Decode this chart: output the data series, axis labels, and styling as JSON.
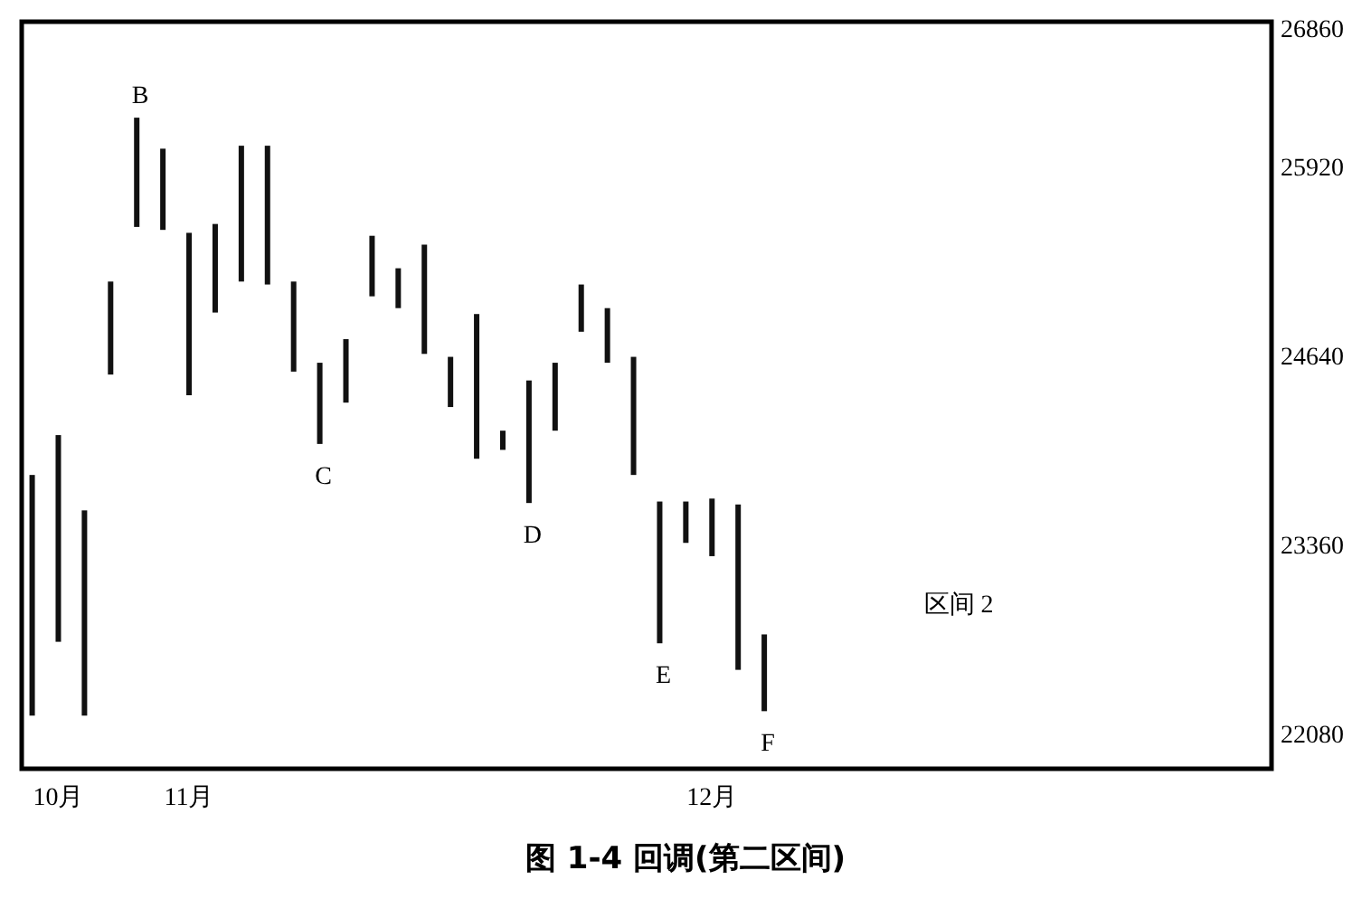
{
  "chart_data": {
    "type": "bar",
    "title": "图 1-4 回调(第二区间)",
    "categories": [
      null,
      "10月",
      null,
      null,
      null,
      null,
      "11月",
      null,
      null,
      null,
      null,
      null,
      null,
      null,
      null,
      null,
      null,
      null,
      null,
      null,
      null,
      null,
      null,
      null,
      null,
      null,
      "12月",
      null,
      null,
      null,
      null,
      null,
      null,
      null,
      null,
      null,
      null,
      null,
      null,
      null,
      null,
      null,
      null,
      null,
      null,
      null,
      null,
      null
    ],
    "base": [
      22200,
      22700,
      22200,
      24510,
      25510,
      25490,
      24370,
      24930,
      25140,
      25120,
      24530,
      24040,
      24320,
      25040,
      24960,
      24650,
      24290,
      23940,
      24000,
      23640,
      24130,
      24800,
      24590,
      23830,
      22690,
      23370,
      23280,
      22510,
      22230,
      null,
      null,
      null,
      null,
      null,
      null,
      null,
      null,
      null,
      null,
      null,
      null,
      null,
      null,
      null,
      null,
      null,
      null,
      null
    ],
    "values": [
      1630,
      1400,
      1390,
      630,
      740,
      550,
      1100,
      600,
      920,
      940,
      610,
      550,
      430,
      410,
      270,
      740,
      340,
      980,
      130,
      830,
      460,
      320,
      370,
      800,
      960,
      280,
      390,
      1120,
      520,
      null,
      null,
      null,
      null,
      null,
      null,
      null,
      null,
      null,
      null,
      null,
      null,
      null,
      null,
      null,
      null,
      null,
      null,
      null
    ],
    "color": "#111111",
    "ylim": [
      21840,
      26900
    ],
    "yticks": [
      22080,
      23360,
      24640,
      25920,
      26860
    ],
    "annotations": [
      {
        "text": "B",
        "y": 26250
      },
      {
        "text": "C",
        "y": 24040
      },
      {
        "text": "D",
        "y": 23640
      },
      {
        "text": "E",
        "y": 22690
      },
      {
        "text": "F",
        "y": 22230
      },
      "区间 2"
    ]
  }
}
